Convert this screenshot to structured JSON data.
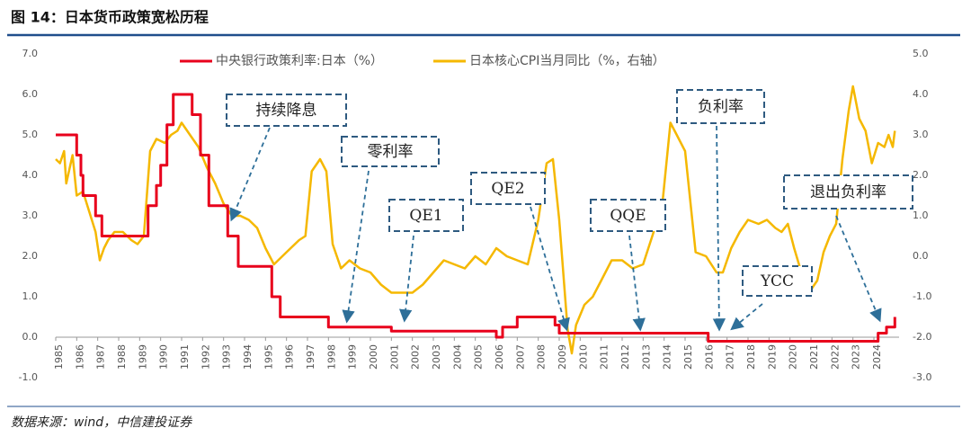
{
  "chart_data": {
    "type": "line",
    "title": "图 14：日本货币政策宽松历程",
    "source": "数据来源：wind，中信建投证券",
    "xlim": [
      1985,
      2025.2
    ],
    "xticks": [
      1985,
      1986,
      1987,
      1988,
      1989,
      1990,
      1991,
      1992,
      1993,
      1994,
      1995,
      1996,
      1997,
      1998,
      1999,
      2000,
      2001,
      2002,
      2003,
      2004,
      2005,
      2006,
      2007,
      2008,
      2009,
      2010,
      2011,
      2012,
      2013,
      2014,
      2015,
      2016,
      2017,
      2018,
      2019,
      2020,
      2021,
      2022,
      2023,
      2024
    ],
    "ylim": [
      -1,
      7
    ],
    "yticks": [
      {
        "value": -1,
        "label": "-1.0"
      },
      {
        "value": 0,
        "label": "0.0"
      },
      {
        "value": 1,
        "label": "1.0"
      },
      {
        "value": 2,
        "label": "2.0"
      },
      {
        "value": 3,
        "label": "3.0"
      },
      {
        "value": 4,
        "label": "4.0"
      },
      {
        "value": 5,
        "label": "5.0"
      },
      {
        "value": 6,
        "label": "6.0"
      },
      {
        "value": 7,
        "label": "7.0"
      }
    ],
    "y2lim": [
      -3,
      5
    ],
    "y2ticks": [
      {
        "value": -3,
        "label": "-3.0"
      },
      {
        "value": -2,
        "label": "-2.0"
      },
      {
        "value": -1,
        "label": "-1.0"
      },
      {
        "value": 0,
        "label": "0.0"
      },
      {
        "value": 1,
        "label": "1.0"
      },
      {
        "value": 2,
        "label": "2.0"
      },
      {
        "value": 3,
        "label": "3.0"
      },
      {
        "value": 4,
        "label": "4.0"
      },
      {
        "value": 5,
        "label": "5.0"
      }
    ],
    "series": [
      {
        "name": "中央银行政策利率:日本（%）",
        "color": "#e8001c",
        "x": [
          1985,
          1986,
          1986,
          1986.2,
          1986.2,
          1986.3,
          1986.3,
          1986.9,
          1986.9,
          1987.2,
          1987.2,
          1989.4,
          1989.4,
          1989.8,
          1989.8,
          1990,
          1990,
          1990.3,
          1990.3,
          1990.6,
          1990.6,
          1991.5,
          1991.5,
          1991.9,
          1991.9,
          1992.3,
          1992.3,
          1993.2,
          1993.2,
          1993.7,
          1993.7,
          1995.3,
          1995.3,
          1995.7,
          1995.7,
          1998,
          1998,
          2001,
          2001,
          2006,
          2006,
          2006.3,
          2006.3,
          2007,
          2007,
          2008.8,
          2008.8,
          2009,
          2009,
          2016.1,
          2016.1,
          2024.2,
          2024.2,
          2024.6,
          2024.6,
          2025,
          2025
        ],
        "values": [
          5,
          5,
          4.5,
          4.5,
          4,
          4,
          3.5,
          3.5,
          3,
          3,
          2.5,
          2.5,
          3.25,
          3.25,
          3.75,
          3.75,
          4.25,
          4.25,
          5.25,
          5.25,
          6,
          6,
          5.5,
          5.5,
          4.5,
          4.5,
          3.25,
          3.25,
          2.5,
          2.5,
          1.75,
          1.75,
          1,
          1,
          0.5,
          0.5,
          0.25,
          0.25,
          0.15,
          0.15,
          0,
          0,
          0.25,
          0.25,
          0.5,
          0.5,
          0.3,
          0.3,
          0.1,
          0.1,
          -0.1,
          -0.1,
          0.1,
          0.1,
          0.25,
          0.25,
          0.5
        ]
      },
      {
        "name": "日本核心CPI当月同比（%，右轴）",
        "color": "#f5b800",
        "axis": "y2",
        "x": [
          1985,
          1985.2,
          1985.4,
          1985.5,
          1985.8,
          1986,
          1986.3,
          1986.6,
          1986.9,
          1987.1,
          1987.3,
          1987.5,
          1987.8,
          1988.2,
          1988.6,
          1988.9,
          1989.2,
          1989.5,
          1989.8,
          1990.2,
          1990.5,
          1990.8,
          1991,
          1991.4,
          1991.8,
          1992.2,
          1992.6,
          1993,
          1993.4,
          1993.8,
          1994.2,
          1994.6,
          1995,
          1995.4,
          1995.8,
          1996.2,
          1996.6,
          1996.9,
          1997.2,
          1997.6,
          1997.9,
          1998.2,
          1998.6,
          1999,
          1999.5,
          2000,
          2000.5,
          2001,
          2001.5,
          2002,
          2002.5,
          2003,
          2003.5,
          2004,
          2004.5,
          2005,
          2005.5,
          2006,
          2006.5,
          2007,
          2007.5,
          2008,
          2008.4,
          2008.7,
          2009,
          2009.4,
          2009.6,
          2009.8,
          2010.2,
          2010.6,
          2011,
          2011.5,
          2012,
          2012.5,
          2013,
          2013.5,
          2013.9,
          2014.3,
          2014.6,
          2015,
          2015.5,
          2016,
          2016.5,
          2016.8,
          2017.2,
          2017.6,
          2018,
          2018.5,
          2018.9,
          2019.3,
          2019.6,
          2019.9,
          2020.2,
          2020.6,
          2020.9,
          2021.3,
          2021.6,
          2021.9,
          2022.2,
          2022.5,
          2022.8,
          2023,
          2023.3,
          2023.6,
          2023.9,
          2024.2,
          2024.5,
          2024.7,
          2024.9,
          2025
        ],
        "values": [
          2.4,
          2.3,
          2.6,
          1.8,
          2.5,
          1.5,
          1.6,
          1.1,
          0.6,
          -0.1,
          0.2,
          0.4,
          0.6,
          0.6,
          0.4,
          0.3,
          0.5,
          2.6,
          2.9,
          2.8,
          3.0,
          3.1,
          3.3,
          3.0,
          2.7,
          2.2,
          1.8,
          1.3,
          1.0,
          1.0,
          0.9,
          0.7,
          0.2,
          -0.2,
          0.0,
          0.2,
          0.4,
          0.5,
          2.1,
          2.4,
          2.1,
          0.3,
          -0.3,
          -0.1,
          -0.3,
          -0.4,
          -0.7,
          -0.9,
          -0.9,
          -0.9,
          -0.7,
          -0.4,
          -0.1,
          -0.2,
          -0.3,
          0.0,
          -0.2,
          0.2,
          0.0,
          -0.1,
          -0.2,
          0.9,
          2.3,
          2.4,
          0.9,
          -1.8,
          -2.4,
          -1.7,
          -1.2,
          -1.0,
          -0.6,
          -0.1,
          -0.1,
          -0.3,
          -0.2,
          0.6,
          1.2,
          3.3,
          3.0,
          2.6,
          0.1,
          0.0,
          -0.4,
          -0.4,
          0.2,
          0.6,
          0.9,
          0.8,
          0.9,
          0.7,
          0.6,
          0.8,
          0.2,
          -0.5,
          -0.9,
          -0.6,
          0.1,
          0.5,
          0.8,
          2.4,
          3.6,
          4.2,
          3.4,
          3.1,
          2.3,
          2.8,
          2.7,
          3.0,
          2.7,
          3.1
        ]
      }
    ],
    "annotations": [
      "持续降息",
      "零利率",
      "QE1",
      "QE2",
      "QQE",
      "负利率",
      "YCC",
      "退出负利率"
    ]
  }
}
